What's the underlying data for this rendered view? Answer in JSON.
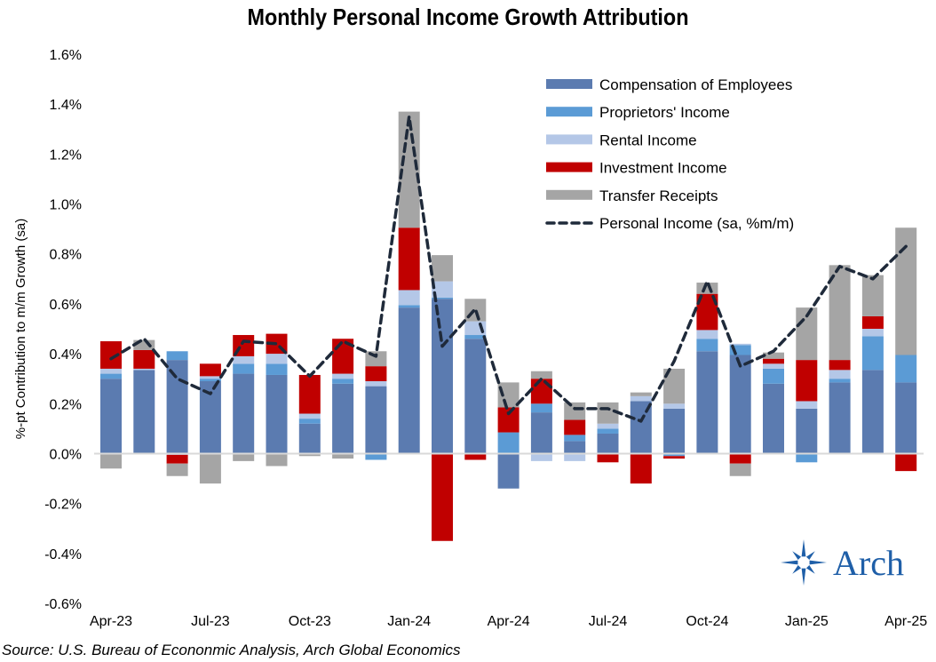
{
  "chart_data": {
    "type": "bar",
    "stacked": true,
    "title": "Monthly Personal Income Growth Attribution",
    "ylabel": "%-pt Contribution to m/m Growth (sa)",
    "xlabel": "",
    "ylim": [
      -0.6,
      1.6
    ],
    "yticks": [
      "-0.6%",
      "-0.4%",
      "-0.2%",
      "0.0%",
      "0.2%",
      "0.4%",
      "0.6%",
      "0.8%",
      "1.0%",
      "1.2%",
      "1.4%",
      "1.6%"
    ],
    "ytick_values": [
      -0.6,
      -0.4,
      -0.2,
      0.0,
      0.2,
      0.4,
      0.6,
      0.8,
      1.0,
      1.2,
      1.4,
      1.6
    ],
    "categories": [
      "Apr-23",
      "May-23",
      "Jun-23",
      "Jul-23",
      "Aug-23",
      "Sep-23",
      "Oct-23",
      "Nov-23",
      "Dec-23",
      "Jan-24",
      "Feb-24",
      "Mar-24",
      "Apr-24",
      "May-24",
      "Jun-24",
      "Jul-24",
      "Aug-24",
      "Sep-24",
      "Oct-24",
      "Nov-24",
      "Dec-24",
      "Jan-25",
      "Feb-25",
      "Mar-25",
      "Apr-25"
    ],
    "xtick_labels": [
      "Apr-23",
      "Jul-23",
      "Oct-23",
      "Jan-24",
      "Apr-24",
      "Jul-24",
      "Oct-24",
      "Jan-25",
      "Apr-25"
    ],
    "legend_position": "top-right",
    "grid": false,
    "series": [
      {
        "name": "Compensation of Employees",
        "color": "#5B7BB0",
        "values": [
          0.3,
          0.335,
          0.375,
          0.29,
          0.32,
          0.315,
          0.12,
          0.28,
          0.27,
          0.585,
          0.62,
          0.46,
          -0.14,
          0.165,
          0.05,
          0.08,
          0.21,
          0.18,
          0.41,
          0.395,
          0.28,
          0.18,
          0.285,
          0.335,
          0.285
        ]
      },
      {
        "name": "Proprietors' Income",
        "color": "#5B9BD5",
        "values": [
          0.02,
          0.0,
          0.035,
          0.01,
          0.04,
          0.045,
          0.02,
          0.02,
          -0.025,
          0.01,
          0.005,
          0.015,
          0.085,
          0.035,
          0.025,
          0.02,
          0.0,
          -0.01,
          0.05,
          0.04,
          0.06,
          -0.035,
          0.015,
          0.135,
          0.11
        ]
      },
      {
        "name": "Rental Income",
        "color": "#B4C7E7",
        "values": [
          0.02,
          0.005,
          -0.005,
          0.01,
          0.03,
          0.04,
          0.02,
          0.02,
          0.02,
          0.06,
          0.065,
          0.055,
          0.0,
          -0.03,
          -0.03,
          0.02,
          0.02,
          0.02,
          0.035,
          0.005,
          0.02,
          0.03,
          0.035,
          0.03,
          0.0
        ]
      },
      {
        "name": "Investment Income",
        "color": "#C00000",
        "values": [
          0.11,
          0.075,
          -0.035,
          0.05,
          0.085,
          0.08,
          0.155,
          0.14,
          0.06,
          0.25,
          -0.35,
          -0.025,
          0.1,
          0.1,
          0.06,
          -0.035,
          -0.12,
          -0.01,
          0.145,
          -0.04,
          0.02,
          0.165,
          0.04,
          0.05,
          -0.07
        ]
      },
      {
        "name": "Transfer Receipts",
        "color": "#A5A5A5",
        "values": [
          -0.06,
          0.04,
          -0.05,
          -0.12,
          -0.03,
          -0.05,
          -0.01,
          -0.02,
          0.06,
          0.465,
          0.105,
          0.09,
          0.1,
          0.03,
          0.07,
          0.085,
          0.015,
          0.14,
          0.045,
          -0.05,
          0.025,
          0.21,
          0.38,
          0.165,
          0.51
        ]
      }
    ],
    "line": {
      "name": "Personal Income (sa, %m/m)",
      "color": "#1F2A3A",
      "style": "dashed",
      "values": [
        0.38,
        0.46,
        0.3,
        0.24,
        0.45,
        0.44,
        0.31,
        0.45,
        0.39,
        1.35,
        0.43,
        0.58,
        0.16,
        0.3,
        0.18,
        0.18,
        0.13,
        0.37,
        0.69,
        0.35,
        0.41,
        0.55,
        0.75,
        0.7,
        0.83
      ]
    }
  },
  "source": "Source: U.S. Bureau of Econonmic Analysis, Arch Global Economics",
  "logo": {
    "text": "Arch",
    "color": "#1F5FA8"
  }
}
